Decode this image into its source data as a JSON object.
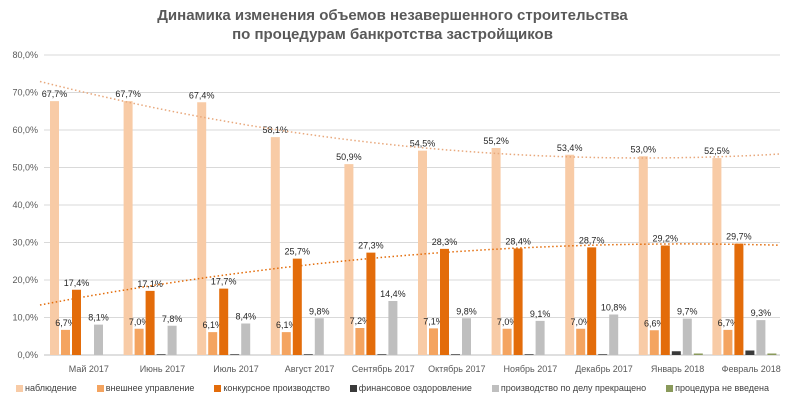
{
  "chart_data": {
    "type": "bar",
    "title": "Динамика изменения объемов незавершенного строительства по процедурам банкротства застройщиков",
    "title_lines": [
      "Динамика изменения объемов незавершенного строительства",
      "по процедурам банкротства застройщиков"
    ],
    "categories": [
      "Май 2017",
      "Июнь  2017",
      "Июль  2017",
      "Август 2017",
      "Сентябрь 2017",
      "Октябрь 2017",
      "Ноябрь 2017",
      "Декабрь 2017",
      "Январь 2018",
      "Февраль 2018"
    ],
    "ylim": [
      0,
      80
    ],
    "yticks": [
      "0,0%",
      "10,0%",
      "20,0%",
      "30,0%",
      "40,0%",
      "50,0%",
      "60,0%",
      "70,0%",
      "80,0%"
    ],
    "grid": true,
    "legend_position": "bottom",
    "series": [
      {
        "name": "наблюдение",
        "color": "#F8CBA6",
        "values": [
          67.7,
          67.7,
          67.4,
          58.1,
          50.9,
          54.5,
          55.2,
          53.4,
          53.0,
          52.5
        ],
        "labels": [
          "67,7%",
          "67,7%",
          "67,4%",
          "58,1%",
          "50,9%",
          "54,5%",
          "55,2%",
          "53,4%",
          "53,0%",
          "52,5%"
        ],
        "label_color": "#262626",
        "trendline": true
      },
      {
        "name": "внешнее управление",
        "color": "#F4A460",
        "values": [
          6.7,
          7.0,
          6.1,
          6.1,
          7.2,
          7.1,
          7.0,
          7.0,
          6.6,
          6.7
        ],
        "labels": [
          "6,7%",
          "7,0%",
          "6,1%",
          "6,1%",
          "7,2%",
          "7,1%",
          "7,0%",
          "7,0%",
          "6,6%",
          "6,7%"
        ],
        "label_color": "#262626"
      },
      {
        "name": "конкурсное  производство",
        "color": "#E36C0A",
        "values": [
          17.4,
          17.1,
          17.7,
          25.7,
          27.3,
          28.3,
          28.4,
          28.7,
          29.2,
          29.7
        ],
        "labels": [
          "17,4%",
          "17,1%",
          "17,7%",
          "25,7%",
          "27,3%",
          "28,3%",
          "28,4%",
          "28,7%",
          "29,2%",
          "29,7%"
        ],
        "label_color": "#E07B39",
        "trendline": true
      },
      {
        "name": "финансовое оздоровление",
        "color": "#3A3A3A",
        "values": [
          0,
          0.2,
          0.2,
          0.2,
          0.2,
          0.2,
          0.2,
          0.2,
          1.0,
          1.2
        ]
      },
      {
        "name": "производство  по делу прекращено",
        "color": "#BFBFBF",
        "values": [
          8.1,
          7.8,
          8.4,
          9.8,
          14.4,
          9.8,
          9.1,
          10.8,
          9.7,
          9.3
        ],
        "labels": [
          "8,1%",
          "7,8%",
          "8,4%",
          "9,8%",
          "14,4%",
          "9,8%",
          "9,1%",
          "10,8%",
          "9,7%",
          "9,3%"
        ],
        "label_color": "#404040"
      },
      {
        "name": "процедура  не введена",
        "color": "#8A9A5B",
        "values": [
          0,
          0,
          0,
          0,
          0,
          0,
          0,
          0,
          0.4,
          0.4
        ]
      }
    ]
  }
}
